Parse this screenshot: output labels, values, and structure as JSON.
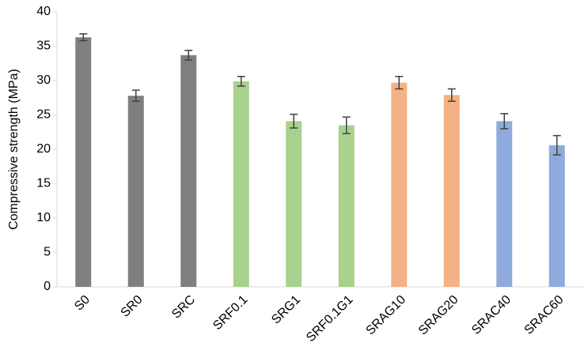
{
  "chart_data": {
    "type": "bar",
    "y_label": "Compressive strength (MPa)",
    "categories": [
      "S0",
      "SR0",
      "SRC",
      "SRF0.1",
      "SRG1",
      "SRF0.1G1",
      "SRAG10",
      "SRAG20",
      "SRAC40",
      "SRAC60"
    ],
    "values": [
      36.3,
      27.8,
      33.7,
      29.9,
      24.1,
      23.5,
      29.7,
      27.9,
      24.1,
      20.6
    ],
    "errors": [
      0.5,
      0.8,
      0.7,
      0.7,
      1.0,
      1.2,
      0.9,
      0.9,
      1.1,
      1.4
    ],
    "colors": [
      "#7f7f7f",
      "#7f7f7f",
      "#7f7f7f",
      "#a9d18e",
      "#a9d18e",
      "#a9d18e",
      "#f4b183",
      "#f4b183",
      "#8faadc",
      "#8faadc"
    ],
    "error_color": "#404040",
    "ylim": [
      0,
      40
    ],
    "yticks": [
      0,
      5,
      10,
      15,
      20,
      25,
      30,
      35,
      40
    ],
    "grid": false
  }
}
